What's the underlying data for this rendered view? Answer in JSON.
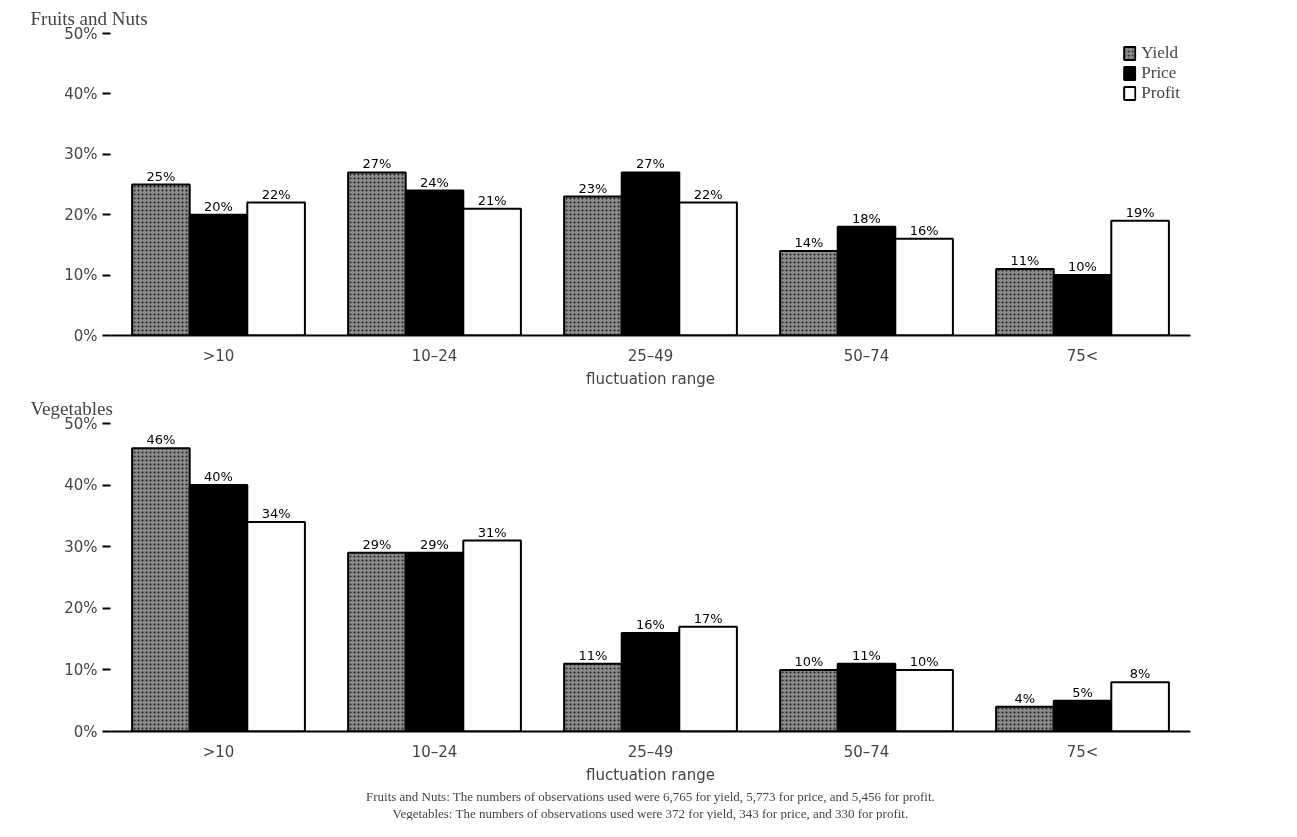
{
  "chart_data": [
    {
      "type": "bar",
      "title": "Fruits and Nuts",
      "xlabel": "fluctuation range",
      "categories": [
        ">10",
        "10–24",
        "25–49",
        "50–74",
        "75<"
      ],
      "series": [
        {
          "name": "Yield",
          "color": "#8c8c8c",
          "values": [
            25,
            27,
            23,
            14,
            11
          ],
          "value_labels": [
            "25%",
            "27%",
            "23%",
            "14%",
            "11%"
          ]
        },
        {
          "name": "Price",
          "color": "#000000",
          "values": [
            20,
            24,
            27,
            18,
            10
          ],
          "value_labels": [
            "20%",
            "24%",
            "27%",
            "18%",
            "10%"
          ]
        },
        {
          "name": "Profit",
          "color": "#ffffff",
          "values": [
            22,
            21,
            22,
            16,
            19
          ],
          "value_labels": [
            "22%",
            "21%",
            "22%",
            "16%",
            "19%"
          ]
        }
      ],
      "ylim": [
        0,
        50
      ],
      "yticks": [
        {
          "value": 0,
          "label": "0%"
        },
        {
          "value": 10,
          "label": "10%"
        },
        {
          "value": 20,
          "label": "20%"
        },
        {
          "value": 30,
          "label": "30%"
        },
        {
          "value": 40,
          "label": "40%"
        },
        {
          "value": 50,
          "label": "50%"
        }
      ],
      "grid": false,
      "legend": "top right"
    },
    {
      "type": "bar",
      "title": "Vegetables",
      "xlabel": "fluctuation range",
      "categories": [
        ">10",
        "10–24",
        "25–49",
        "50–74",
        "75<"
      ],
      "series": [
        {
          "color": "#8c8c8c",
          "values": [
            46,
            29,
            11,
            10,
            4
          ],
          "value_labels": [
            "46%",
            "29%",
            "11%",
            "10%",
            "4%"
          ]
        },
        {
          "color": "#000000",
          "values": [
            40,
            29,
            16,
            11,
            5
          ],
          "value_labels": [
            "40%",
            "29%",
            "16%",
            "11%",
            "5%"
          ]
        },
        {
          "color": "#ffffff",
          "values": [
            34,
            31,
            17,
            10,
            8
          ],
          "value_labels": [
            "34%",
            "31%",
            "17%",
            "10%",
            "8%"
          ]
        }
      ],
      "ylim": [
        0,
        50
      ],
      "yticks": [
        {
          "value": 0,
          "label": "0%"
        },
        {
          "value": 10,
          "label": "10%"
        },
        {
          "value": 20,
          "label": "20%"
        },
        {
          "value": 30,
          "label": "30%"
        },
        {
          "value": 40,
          "label": "40%"
        },
        {
          "value": 50,
          "label": "50%"
        }
      ],
      "grid": false,
      "legend": false,
      "annotations": [
        "Fruits and Nuts: The numbers of observations used were 6,765 for yield, 5,773 for price, and 5,456 for profit.",
        "Vegetables: The numbers of observations used were 372 for yield, 343 for price, and 330 for profit."
      ]
    }
  ]
}
